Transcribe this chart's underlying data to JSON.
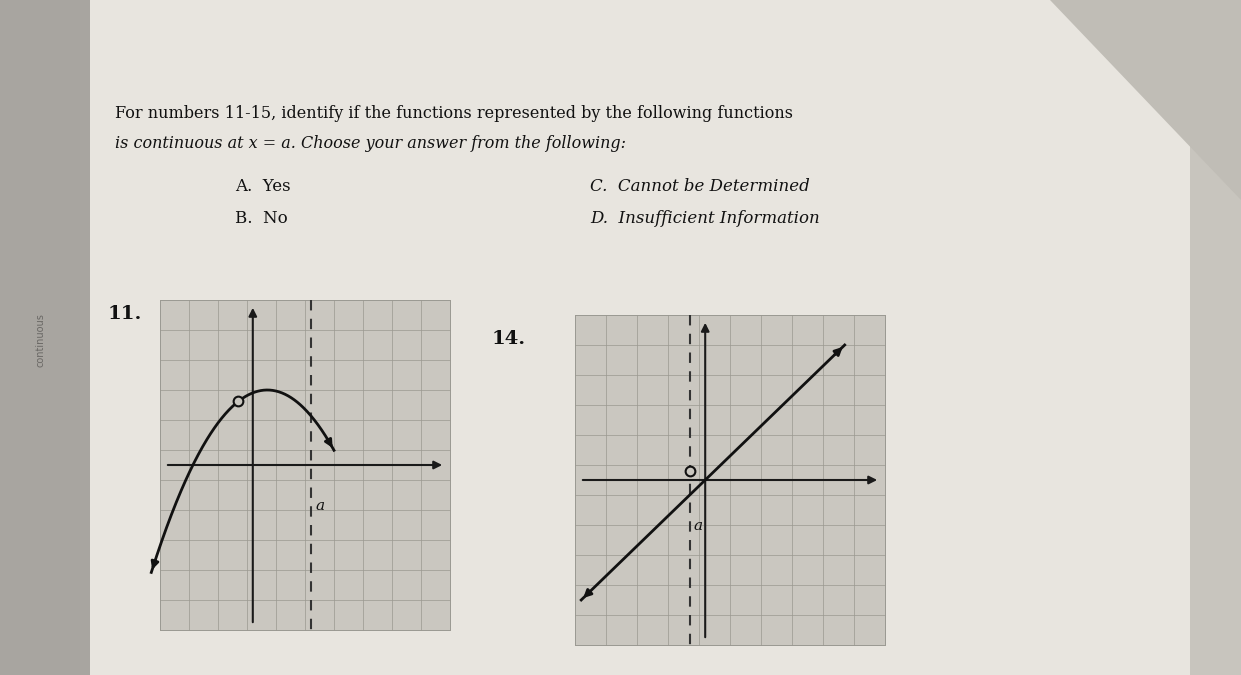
{
  "bg_color": "#c8c5be",
  "paper_color": "#e0ddd6",
  "paper_light": "#eae8e2",
  "grid_color": "#b0ada6",
  "grid_color_dark": "#9a9890",
  "axis_color": "#1a1a1a",
  "curve_color": "#111111",
  "dashed_color": "#333333",
  "title_line1": "For numbers 11-15, identify if the functions represented by the following functions",
  "title_line2": "is continuous at x = a. Choose your answer from the following:",
  "choice_A": "A.  Yes",
  "choice_B": "B.  No",
  "choice_C": "C.  Cannot be Determined",
  "choice_D": "D.  Insufficient Information",
  "label11": "11.",
  "label14": "14.",
  "shadow_color": "#8a8880"
}
